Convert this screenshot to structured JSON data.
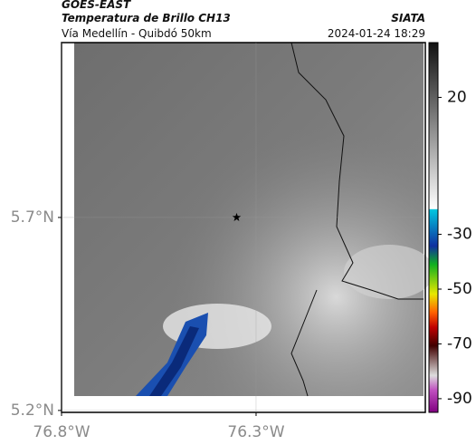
{
  "header": {
    "title": "GOES-EAST",
    "subtitle": "Temperatura de Brillo CH13",
    "source": "SIATA",
    "route": "Vía Medellín - Quibdó 50km",
    "timestamp": "2024-01-24 18:29"
  },
  "map": {
    "xlim": [
      -76.8,
      -75.865
    ],
    "ylim": [
      5.195,
      6.153
    ],
    "xticks": [
      {
        "value": -76.8,
        "label": "76.8°W"
      },
      {
        "value": -76.3,
        "label": "76.3°W"
      }
    ],
    "yticks": [
      {
        "value": 5.2,
        "label": "5.2°N"
      },
      {
        "value": 5.7,
        "label": "5.7°N"
      }
    ],
    "grid": true,
    "marker": {
      "x": -76.35,
      "y": 5.7
    }
  },
  "colorbar": {
    "lim": [
      -95,
      40
    ],
    "ticks": [
      20,
      -30,
      -50,
      -70,
      -90
    ]
  }
}
